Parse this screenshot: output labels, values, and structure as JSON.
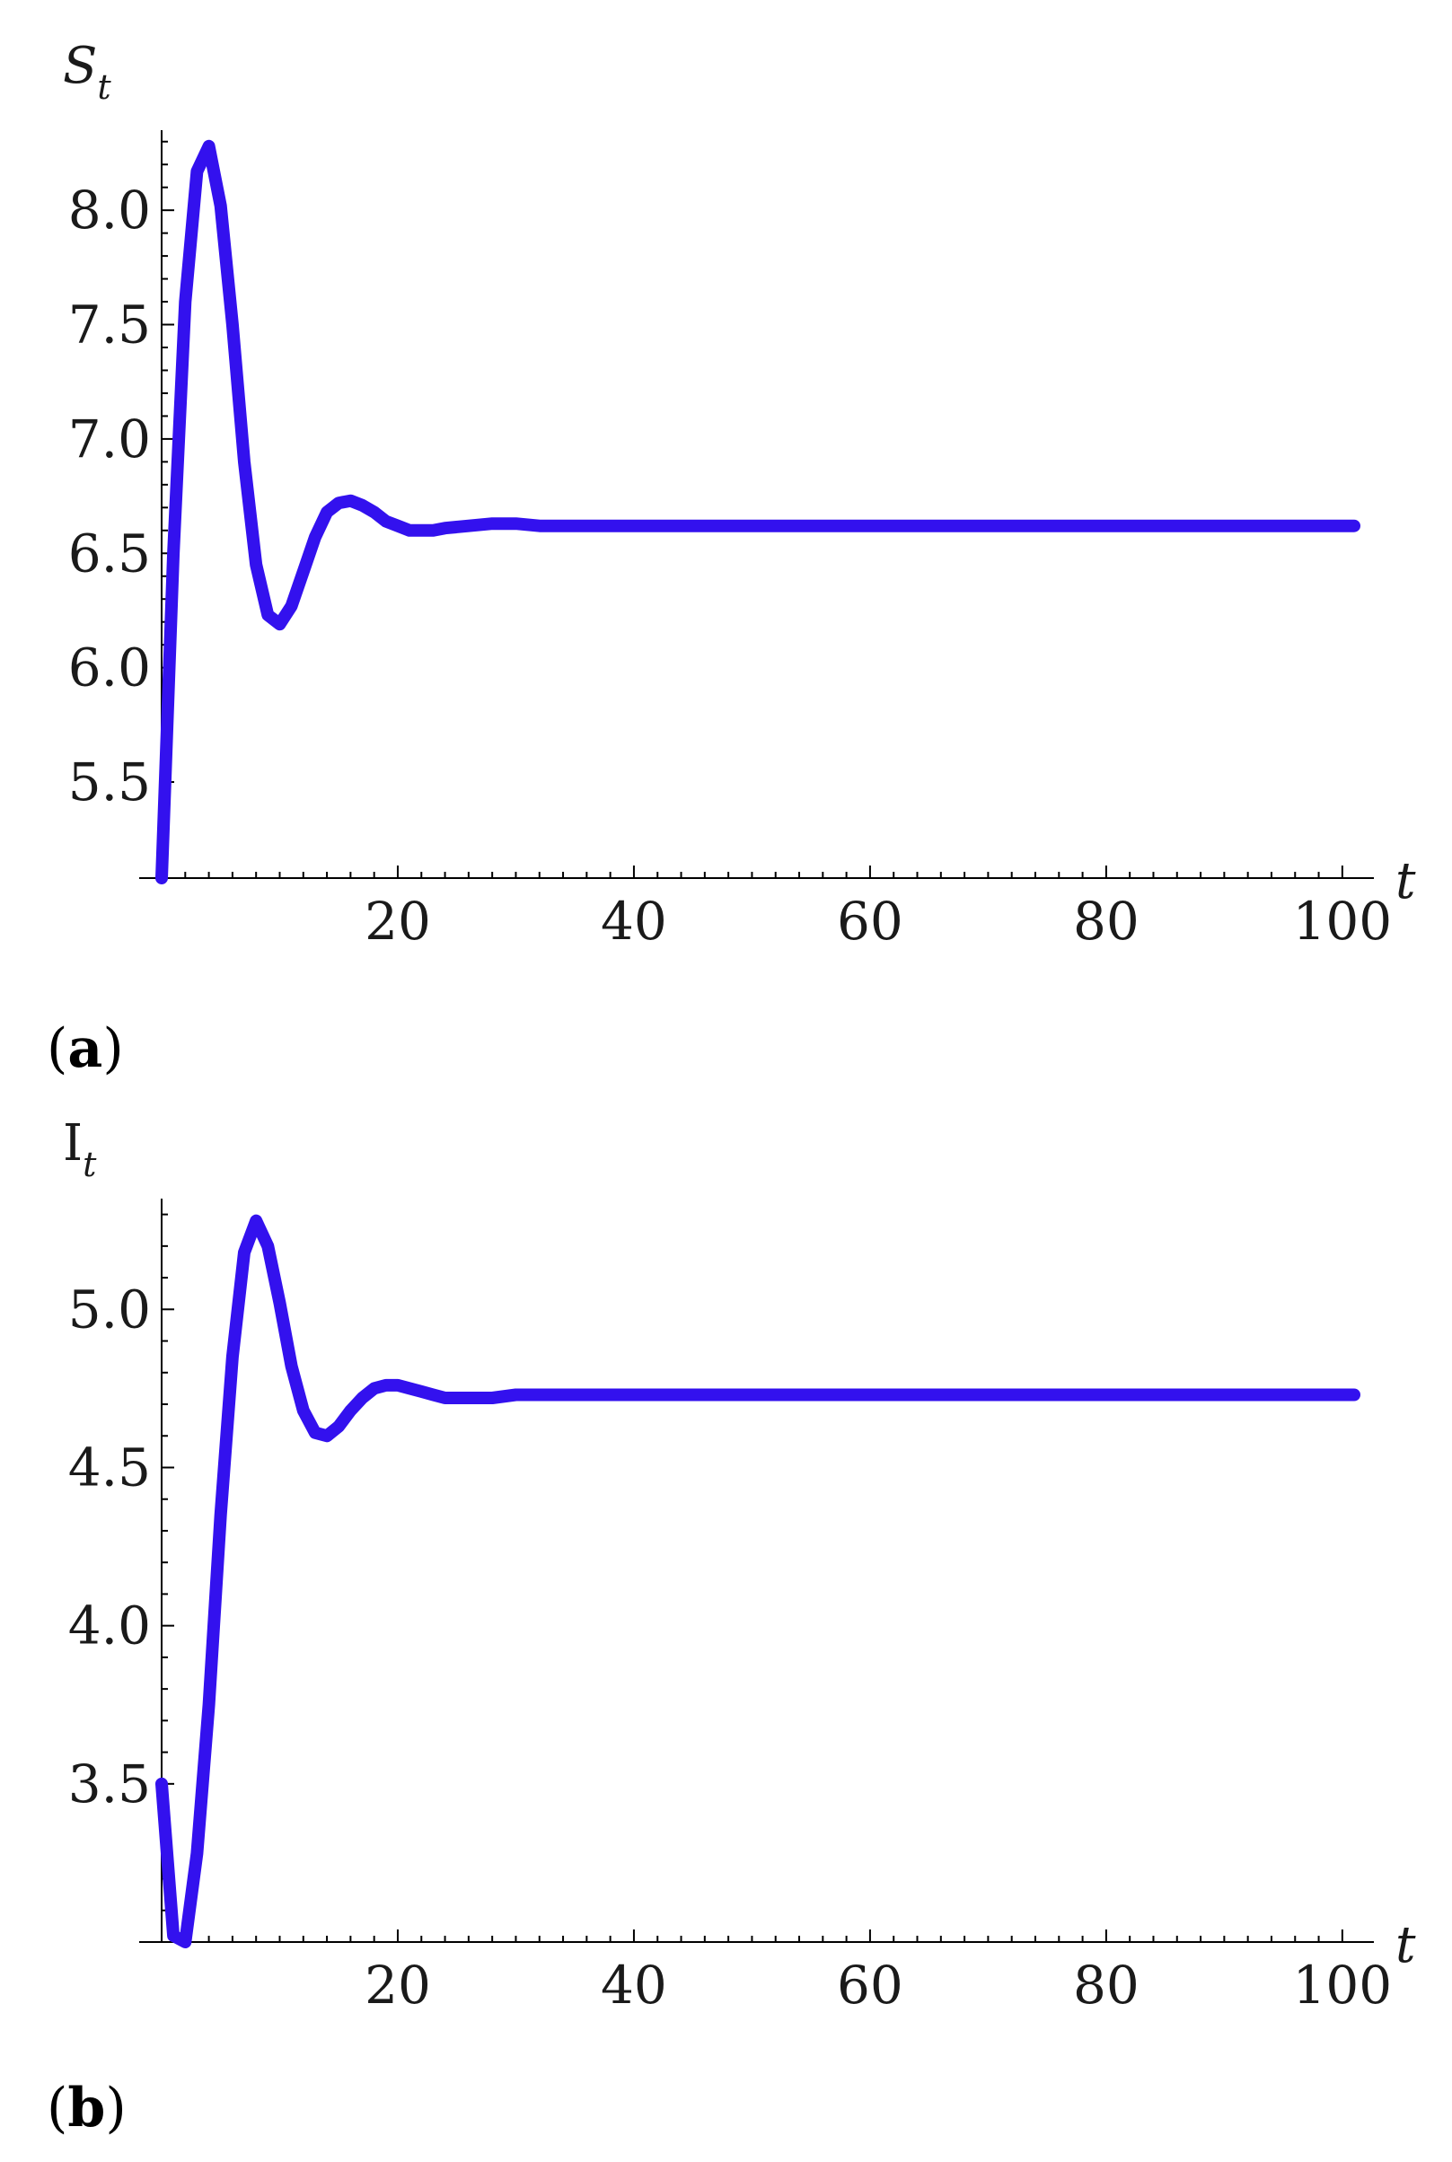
{
  "colors": {
    "series": "#3311ee"
  },
  "panels": [
    {
      "label_open": "(",
      "label_letter": "a",
      "label_close": ")"
    },
    {
      "label_open": "(",
      "label_letter": "b",
      "label_close": ")"
    }
  ],
  "chart_data": [
    {
      "type": "line",
      "ylabel_main": "S",
      "ylabel_sub": "t",
      "xlabel": "t",
      "xlim": [
        0,
        101
      ],
      "ylim": [
        5.08,
        8.35
      ],
      "x_ticks": [
        20,
        40,
        60,
        80,
        100
      ],
      "x_tick_labels": [
        "20",
        "40",
        "60",
        "80",
        "100"
      ],
      "y_ticks": [
        5.5,
        6.0,
        6.5,
        7.0,
        7.5,
        8.0
      ],
      "y_tick_labels": [
        "5.5",
        "6.0",
        "6.5",
        "7.0",
        "7.5",
        "8.0"
      ],
      "grid": false,
      "series": [
        {
          "x": [
            0,
            1,
            2,
            3,
            4,
            5,
            6,
            7,
            8,
            9,
            10,
            11,
            12,
            13,
            14,
            15,
            16,
            17,
            18,
            19,
            20,
            21,
            22,
            23,
            24,
            26,
            28,
            30,
            32,
            35,
            40,
            50,
            60,
            70,
            80,
            90,
            101
          ],
          "values": [
            5.08,
            6.5,
            7.6,
            8.17,
            8.28,
            8.02,
            7.5,
            6.9,
            6.45,
            6.23,
            6.19,
            6.27,
            6.42,
            6.57,
            6.68,
            6.72,
            6.73,
            6.71,
            6.68,
            6.64,
            6.62,
            6.6,
            6.6,
            6.6,
            6.61,
            6.62,
            6.63,
            6.63,
            6.62,
            6.62,
            6.62,
            6.62,
            6.62,
            6.62,
            6.62,
            6.62,
            6.62
          ]
        }
      ]
    },
    {
      "type": "line",
      "ylabel_main": "I",
      "ylabel_sub": "t",
      "xlabel": "t",
      "xlim": [
        0,
        101
      ],
      "ylim": [
        3.0,
        5.35
      ],
      "x_ticks": [
        20,
        40,
        60,
        80,
        100
      ],
      "x_tick_labels": [
        "20",
        "40",
        "60",
        "80",
        "100"
      ],
      "y_ticks": [
        3.5,
        4.0,
        4.5,
        5.0
      ],
      "y_tick_labels": [
        "3.5",
        "4.0",
        "4.5",
        "5.0"
      ],
      "grid": false,
      "series": [
        {
          "x": [
            0,
            1,
            2,
            3,
            4,
            5,
            6,
            7,
            8,
            9,
            10,
            11,
            12,
            13,
            14,
            15,
            16,
            17,
            18,
            19,
            20,
            21,
            22,
            23,
            24,
            26,
            28,
            30,
            33,
            40,
            50,
            60,
            70,
            80,
            90,
            101
          ],
          "values": [
            3.5,
            3.02,
            3.0,
            3.28,
            3.75,
            4.35,
            4.85,
            5.18,
            5.28,
            5.2,
            5.02,
            4.82,
            4.68,
            4.61,
            4.6,
            4.63,
            4.68,
            4.72,
            4.75,
            4.76,
            4.76,
            4.75,
            4.74,
            4.73,
            4.72,
            4.72,
            4.72,
            4.73,
            4.73,
            4.73,
            4.73,
            4.73,
            4.73,
            4.73,
            4.73,
            4.73
          ]
        }
      ]
    }
  ]
}
